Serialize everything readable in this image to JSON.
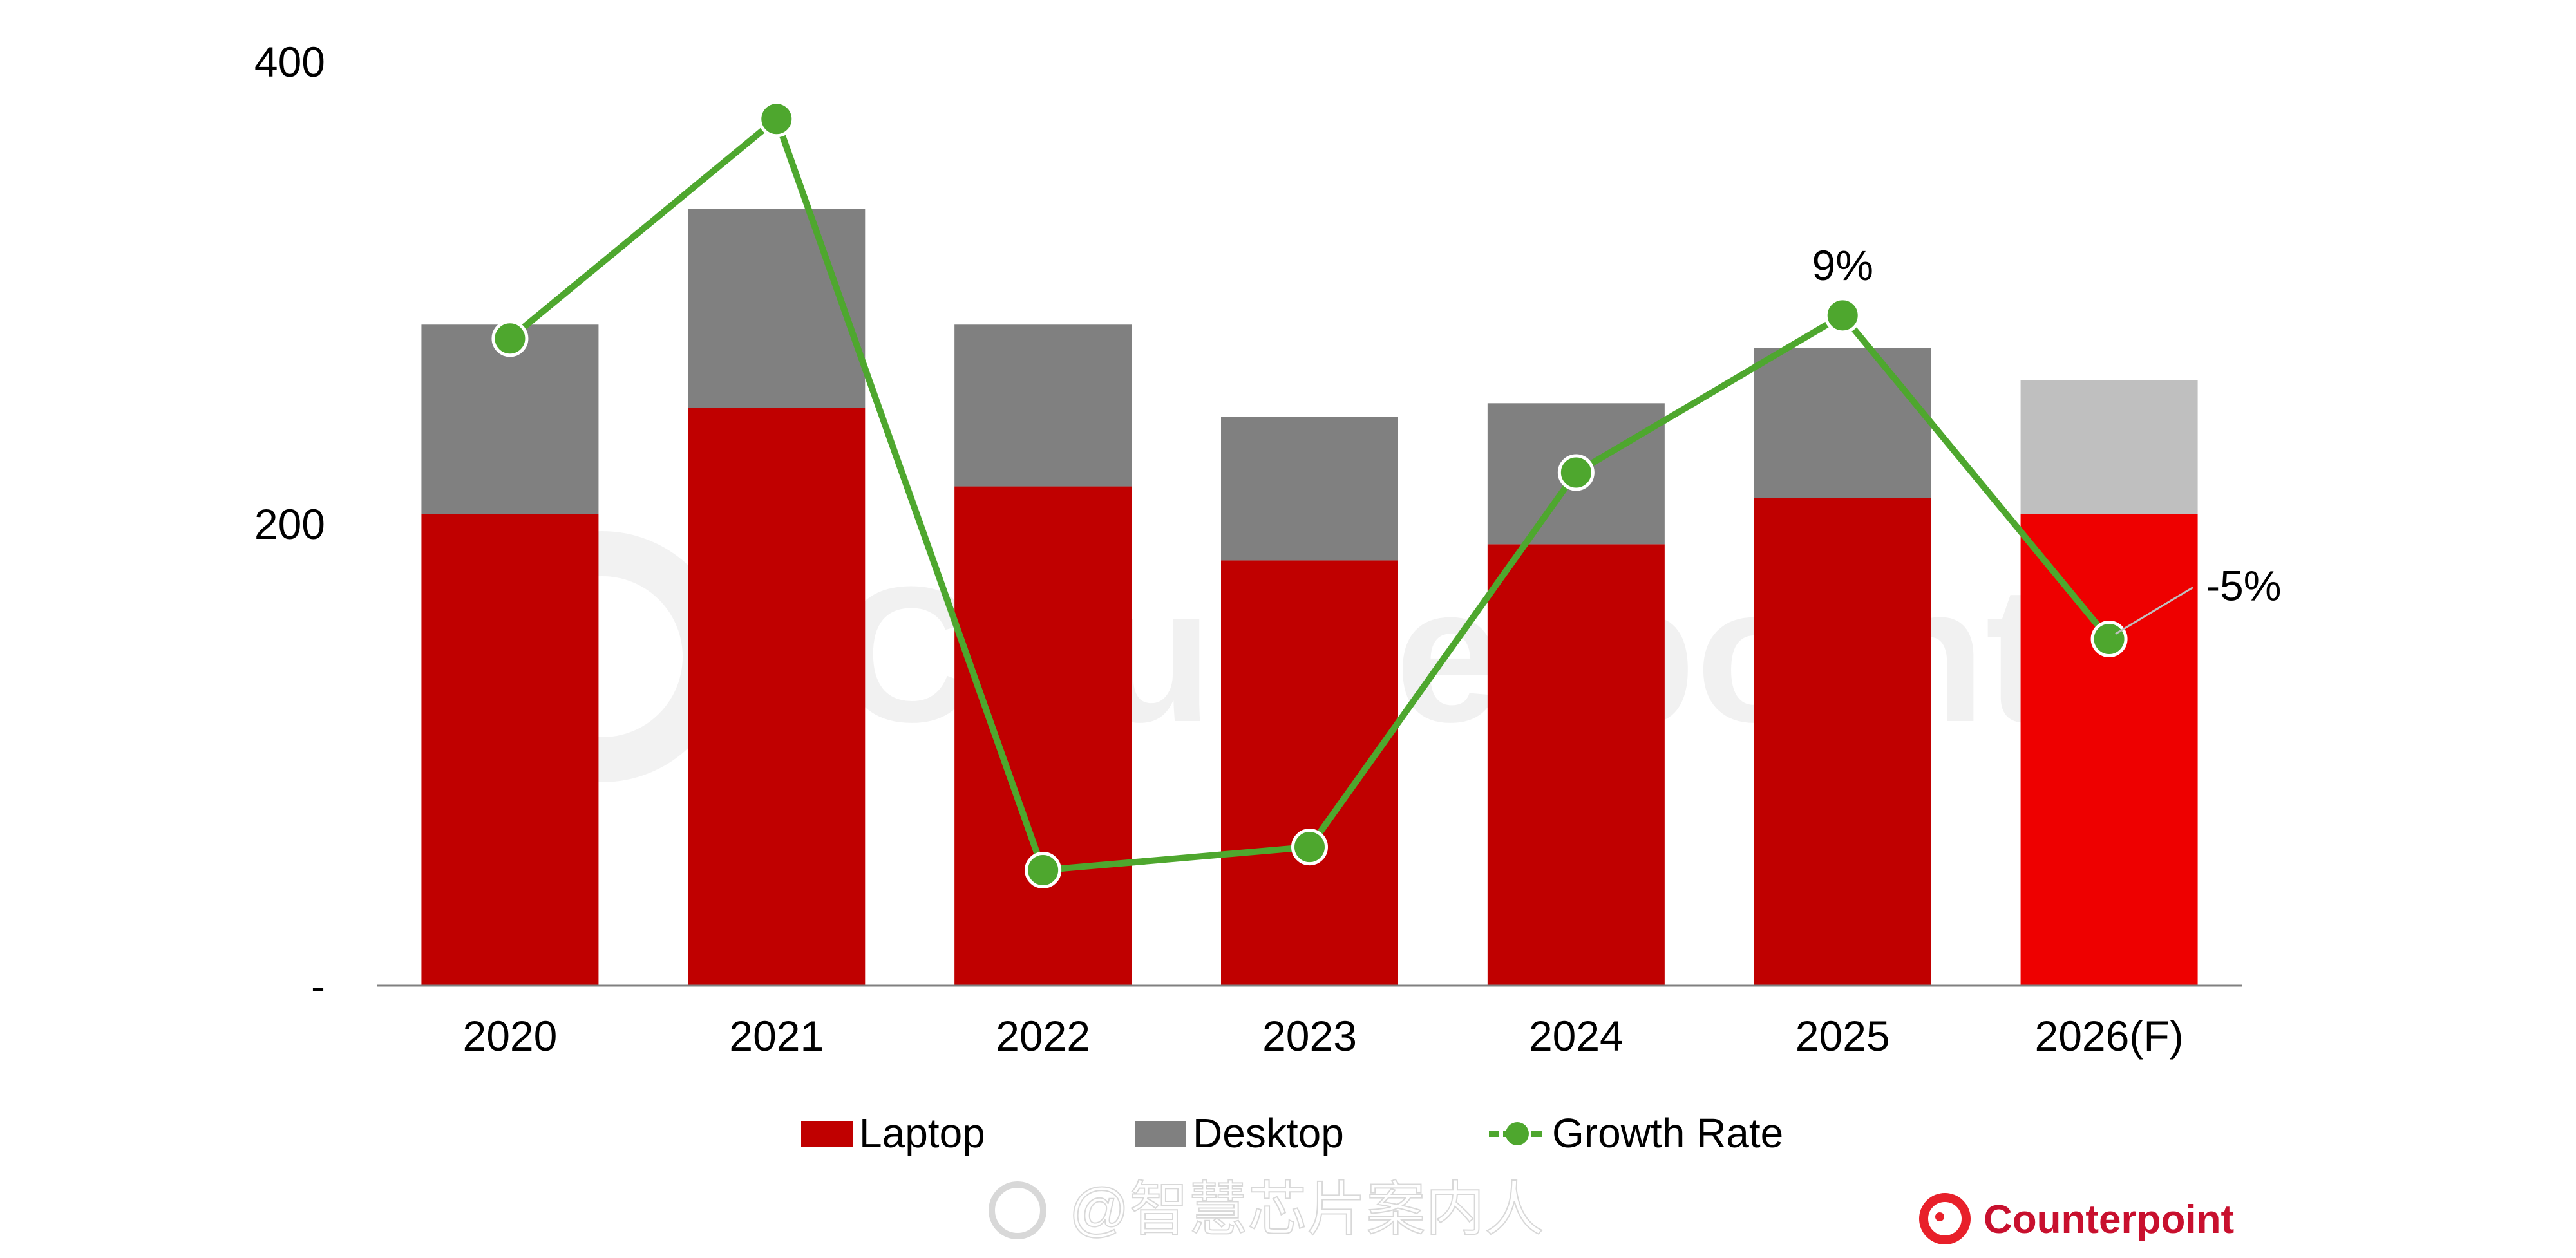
{
  "chart_data": {
    "type": "bar",
    "stacked": true,
    "categories": [
      "2020",
      "2021",
      "2022",
      "2023",
      "2024",
      "2025",
      "2026(F)"
    ],
    "series": [
      {
        "name": "Laptop",
        "type": "bar",
        "color": "#C00000",
        "forecast_color": "#EE0000",
        "values": [
          204,
          250,
          216,
          184,
          191,
          211,
          204
        ]
      },
      {
        "name": "Desktop",
        "type": "bar",
        "color": "#808080",
        "forecast_color": "#BFBFBF",
        "values": [
          82,
          86,
          70,
          62,
          61,
          65,
          58
        ]
      },
      {
        "name": "Growth Rate",
        "type": "line",
        "axis": "secondary",
        "color": "#4EA72E",
        "unit": "%",
        "values": [
          8,
          17.5,
          -15,
          -14,
          2.2,
          9,
          -5
        ]
      }
    ],
    "yticks": [
      "400",
      "200",
      "-"
    ],
    "ytick_values": [
      400,
      200,
      0
    ],
    "ylim": [
      0,
      400
    ],
    "y2lim": [
      -20,
      20
    ],
    "grid": false,
    "legend_position": "bottom",
    "annotations": [
      {
        "category": "2025",
        "text": "9%",
        "color": "#000000"
      },
      {
        "category": "2026(F)",
        "text": "-5%",
        "color": "#FF0000"
      }
    ]
  },
  "watermark": {
    "brand": "Counterpoint",
    "weibo": "@智慧芯片案内人"
  },
  "logo": {
    "text": "Counterpoint",
    "color": "#C8102E"
  }
}
